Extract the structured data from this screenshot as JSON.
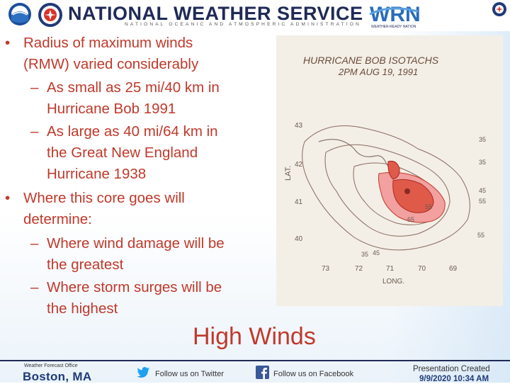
{
  "header": {
    "title": "NATIONAL WEATHER SERVICE",
    "subtitle": "NATIONAL OCEANIC AND ATMOSPHERIC ADMINISTRATION",
    "wrn_logo_text": "WRN",
    "wrn_tagline": "WEATHER-READY NATION"
  },
  "bullets": {
    "b1": {
      "marker": "•",
      "lines": [
        "Radius of maximum winds",
        "(RMW) varied considerably"
      ]
    },
    "s1": {
      "marker": "–",
      "lines": [
        "As small as 25 mi/40 km in",
        "Hurricane Bob 1991"
      ]
    },
    "s2": {
      "marker": "–",
      "lines": [
        "As large as 40 mi/64 km in",
        "the Great New England",
        "Hurricane 1938"
      ]
    },
    "b2": {
      "marker": "•",
      "lines": [
        "Where this core goes will",
        "determine:"
      ]
    },
    "s3": {
      "marker": "–",
      "lines": [
        "Where wind damage will be",
        "the greatest"
      ]
    },
    "s4": {
      "marker": "–",
      "lines": [
        "Where storm surges will be",
        "the highest"
      ]
    }
  },
  "figure": {
    "title_line1": "HURRICANE BOB ISOTACHS",
    "title_line2": "2PM AUG 19, 1991",
    "lat_label": "LAT.",
    "long_label": "LONG.",
    "lat_ticks": [
      "43",
      "42",
      "41",
      "40"
    ],
    "long_ticks": [
      "73",
      "72",
      "71",
      "70",
      "69"
    ],
    "contour_labels": [
      "35",
      "45",
      "55",
      "35",
      "55",
      "35",
      "45",
      "65",
      "55"
    ]
  },
  "slide_title": "High Winds",
  "footer": {
    "wfo_label": "Weather Forecast Office",
    "wfo_city": "Boston, MA",
    "twitter_text": "Follow us on Twitter",
    "facebook_text": "Follow us on Facebook",
    "created_label": "Presentation Created",
    "created_date": "9/9/2020 10:34 AM"
  },
  "colors": {
    "accent_red": "#c0392b",
    "navy": "#1f2a57"
  },
  "icons": [
    "noaa-logo-icon",
    "nws-logo-icon",
    "wrn-logo-icon",
    "twitter-bird-icon",
    "facebook-icon"
  ]
}
